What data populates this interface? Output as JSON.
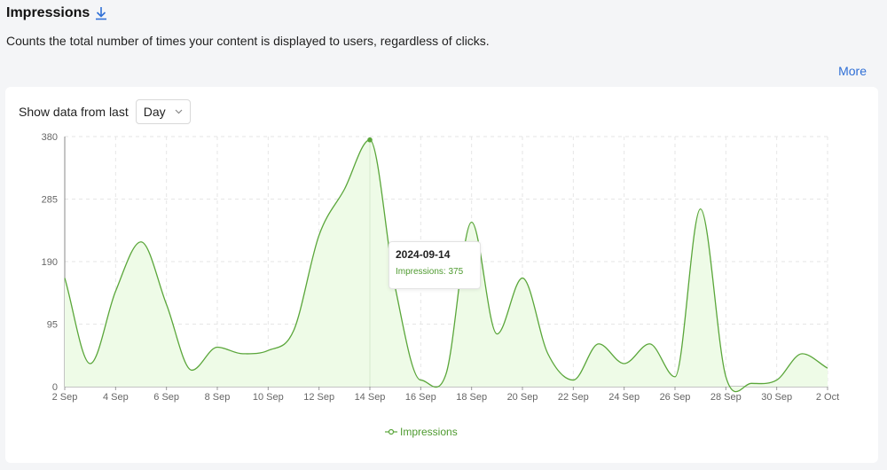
{
  "header": {
    "title": "Impressions",
    "description": "Counts the total number of times your content is displayed to users, regardless of clicks.",
    "more_label": "More"
  },
  "filter": {
    "label": "Show data from last",
    "selected": "Day"
  },
  "tooltip": {
    "date": "2024-09-14",
    "value_text": "Impressions: 375"
  },
  "colors": {
    "line": "#5aa63a",
    "fill": "#eefbe7",
    "accent": "#2f6fd6"
  },
  "chart_data": {
    "type": "area",
    "x_tick_labels": [
      "2 Sep",
      "4 Sep",
      "6 Sep",
      "8 Sep",
      "10 Sep",
      "12 Sep",
      "14 Sep",
      "16 Sep",
      "18 Sep",
      "20 Sep",
      "22 Sep",
      "24 Sep",
      "26 Sep",
      "28 Sep",
      "30 Sep",
      "2 Oct"
    ],
    "y_ticks": [
      0,
      95,
      190,
      285,
      380
    ],
    "ylim": [
      0,
      380
    ],
    "grid": true,
    "legend_position": "bottom-center",
    "series": [
      {
        "name": "Impressions",
        "x": [
          "2024-09-02",
          "2024-09-03",
          "2024-09-04",
          "2024-09-05",
          "2024-09-06",
          "2024-09-07",
          "2024-09-08",
          "2024-09-09",
          "2024-09-10",
          "2024-09-11",
          "2024-09-12",
          "2024-09-13",
          "2024-09-14",
          "2024-09-15",
          "2024-09-16",
          "2024-09-17",
          "2024-09-18",
          "2024-09-19",
          "2024-09-20",
          "2024-09-21",
          "2024-09-22",
          "2024-09-23",
          "2024-09-24",
          "2024-09-25",
          "2024-09-26",
          "2024-09-27",
          "2024-09-28",
          "2024-09-29",
          "2024-09-30",
          "2024-10-01",
          "2024-10-02"
        ],
        "values": [
          165,
          35,
          145,
          220,
          125,
          25,
          60,
          50,
          55,
          85,
          230,
          300,
          375,
          150,
          10,
          20,
          250,
          80,
          165,
          50,
          10,
          65,
          35,
          65,
          15,
          270,
          15,
          5,
          10,
          50,
          28
        ]
      }
    ]
  }
}
